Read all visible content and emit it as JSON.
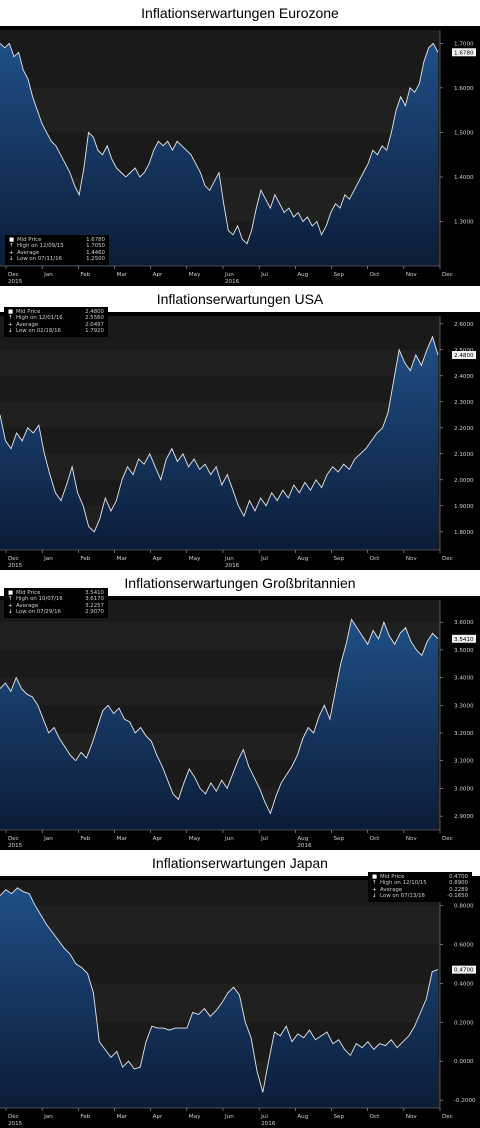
{
  "chart_data": [
    {
      "type": "area",
      "title": "Inflationserwartungen Eurozone",
      "x_ticks": [
        "Dec",
        "Jan",
        "Feb",
        "Mar",
        "Apr",
        "May",
        "Jun",
        "Jul",
        "Aug",
        "Sep",
        "Oct",
        "Nov",
        "Dec"
      ],
      "x_sub": {
        "Dec": "2015",
        "Jun": "2016"
      },
      "ylim": [
        1.2,
        1.73
      ],
      "y_ticks": [
        "1.7000",
        "1.6000",
        "1.5000",
        "1.4000",
        "1.3000"
      ],
      "last_value_label": "1.6780",
      "legend_position": "bottom-left",
      "legend": [
        {
          "sym": "■",
          "label": "Mid Price",
          "value": "1.6780"
        },
        {
          "sym": "↑",
          "label": "High on 12/09/15",
          "value": "1.7050"
        },
        {
          "sym": "+",
          "label": "Average",
          "value": "1.4460"
        },
        {
          "sym": "↓",
          "label": "Low on 07/11/16",
          "value": "1.2500"
        }
      ],
      "series": [
        {
          "values": [
            1.7,
            1.69,
            1.7,
            1.67,
            1.68,
            1.64,
            1.62,
            1.58,
            1.55,
            1.52,
            1.5,
            1.48,
            1.47,
            1.45,
            1.43,
            1.41,
            1.38,
            1.36,
            1.42,
            1.5,
            1.49,
            1.46,
            1.45,
            1.47,
            1.44,
            1.42,
            1.41,
            1.4,
            1.41,
            1.42,
            1.4,
            1.41,
            1.43,
            1.46,
            1.48,
            1.47,
            1.48,
            1.46,
            1.48,
            1.47,
            1.46,
            1.45,
            1.43,
            1.41,
            1.38,
            1.37,
            1.39,
            1.41,
            1.34,
            1.28,
            1.27,
            1.29,
            1.26,
            1.25,
            1.28,
            1.33,
            1.37,
            1.35,
            1.33,
            1.36,
            1.34,
            1.32,
            1.33,
            1.31,
            1.32,
            1.3,
            1.31,
            1.29,
            1.3,
            1.27,
            1.29,
            1.32,
            1.34,
            1.33,
            1.36,
            1.35,
            1.37,
            1.39,
            1.41,
            1.43,
            1.46,
            1.45,
            1.47,
            1.46,
            1.5,
            1.55,
            1.58,
            1.56,
            1.6,
            1.59,
            1.61,
            1.66,
            1.69,
            1.7,
            1.68
          ]
        }
      ]
    },
    {
      "type": "area",
      "title": "Inflationserwartungen USA",
      "x_ticks": [
        "Dec",
        "Jan",
        "Feb",
        "Mar",
        "Apr",
        "May",
        "Jun",
        "Jul",
        "Aug",
        "Sep",
        "Oct",
        "Nov",
        "Dec"
      ],
      "x_sub": {
        "Dec": "2015",
        "Jun": "2016"
      },
      "ylim": [
        1.73,
        2.63
      ],
      "y_ticks": [
        "2.6000",
        "2.5000",
        "2.4000",
        "2.3000",
        "2.2000",
        "2.1000",
        "2.0000",
        "1.9000",
        "1.8000"
      ],
      "last_value_label": "2.4800",
      "legend_position": "top-left",
      "legend": [
        {
          "sym": "■",
          "label": "Mid Price",
          "value": "2.4800"
        },
        {
          "sym": "↑",
          "label": "High on 12/01/16",
          "value": "2.5560"
        },
        {
          "sym": "+",
          "label": "Average",
          "value": "2.0497"
        },
        {
          "sym": "↓",
          "label": "Low on 02/18/16",
          "value": "1.7920"
        }
      ],
      "series": [
        {
          "values": [
            2.25,
            2.15,
            2.12,
            2.18,
            2.15,
            2.2,
            2.18,
            2.21,
            2.1,
            2.02,
            1.95,
            1.92,
            1.98,
            2.05,
            1.95,
            1.9,
            1.82,
            1.8,
            1.85,
            1.93,
            1.88,
            1.92,
            2.0,
            2.05,
            2.02,
            2.08,
            2.06,
            2.1,
            2.05,
            2.0,
            2.08,
            2.12,
            2.07,
            2.1,
            2.05,
            2.08,
            2.04,
            2.06,
            2.02,
            2.05,
            1.98,
            2.02,
            1.96,
            1.9,
            1.86,
            1.92,
            1.88,
            1.93,
            1.9,
            1.95,
            1.92,
            1.96,
            1.93,
            1.98,
            1.95,
            1.99,
            1.96,
            2.0,
            1.97,
            2.02,
            2.05,
            2.03,
            2.06,
            2.04,
            2.08,
            2.1,
            2.12,
            2.15,
            2.18,
            2.2,
            2.26,
            2.38,
            2.5,
            2.45,
            2.42,
            2.48,
            2.44,
            2.5,
            2.55,
            2.48
          ]
        }
      ]
    },
    {
      "type": "area",
      "title": "Inflationserwartungen Großbritannien",
      "x_ticks": [
        "Dec",
        "Jan",
        "Feb",
        "Mar",
        "Apr",
        "May",
        "Jun",
        "Jul",
        "Aug",
        "Sep",
        "Oct",
        "Nov",
        "Dec"
      ],
      "x_sub": {
        "Dec": "2015",
        "Aug": "2016"
      },
      "ylim": [
        2.85,
        3.68
      ],
      "y_ticks": [
        "3.6000",
        "3.5000",
        "3.4000",
        "3.3000",
        "3.2000",
        "3.1000",
        "3.0000",
        "2.9000"
      ],
      "last_value_label": "3.5410",
      "legend_position": "top-left",
      "legend": [
        {
          "sym": "■",
          "label": "Mid Price",
          "value": "3.5410"
        },
        {
          "sym": "↑",
          "label": "High on 10/07/16",
          "value": "3.6170"
        },
        {
          "sym": "+",
          "label": "Average",
          "value": "3.2257"
        },
        {
          "sym": "↓",
          "label": "Low on 07/29/16",
          "value": "2.9070"
        }
      ],
      "series": [
        {
          "values": [
            3.36,
            3.38,
            3.35,
            3.4,
            3.36,
            3.34,
            3.33,
            3.3,
            3.25,
            3.2,
            3.22,
            3.18,
            3.15,
            3.12,
            3.1,
            3.13,
            3.11,
            3.16,
            3.22,
            3.28,
            3.3,
            3.27,
            3.29,
            3.25,
            3.24,
            3.2,
            3.22,
            3.19,
            3.17,
            3.12,
            3.08,
            3.03,
            2.98,
            2.96,
            3.02,
            3.07,
            3.04,
            3.0,
            2.98,
            3.02,
            2.99,
            3.03,
            3.0,
            3.05,
            3.1,
            3.14,
            3.08,
            3.04,
            3.0,
            2.95,
            2.91,
            2.97,
            3.02,
            3.05,
            3.08,
            3.12,
            3.18,
            3.22,
            3.2,
            3.26,
            3.3,
            3.25,
            3.35,
            3.45,
            3.52,
            3.61,
            3.58,
            3.55,
            3.52,
            3.57,
            3.54,
            3.6,
            3.55,
            3.52,
            3.56,
            3.58,
            3.53,
            3.5,
            3.48,
            3.53,
            3.56,
            3.54
          ]
        }
      ]
    },
    {
      "type": "area",
      "title": "Inflationserwartungen Japan",
      "x_ticks": [
        "Dec",
        "Jan",
        "Feb",
        "Mar",
        "Apr",
        "May",
        "Jun",
        "Jul",
        "Aug",
        "Sep",
        "Oct",
        "Nov",
        "Dec"
      ],
      "x_sub": {
        "Dec": "2015",
        "Jul": "2016"
      },
      "ylim": [
        -0.24,
        0.93
      ],
      "y_ticks": [
        "0.8000",
        "0.6000",
        "0.4000",
        "0.2000",
        "0.0000",
        "-0.2000"
      ],
      "last_value_label": "0.4700",
      "legend_position": "top-right",
      "legend": [
        {
          "sym": "■",
          "label": "Mid Price",
          "value": "0.4700"
        },
        {
          "sym": "↑",
          "label": "High on 12/10/15",
          "value": "0.8900"
        },
        {
          "sym": "+",
          "label": "Average",
          "value": "0.2289"
        },
        {
          "sym": "↓",
          "label": "Low on 07/13/16",
          "value": "-0.1650"
        }
      ],
      "series": [
        {
          "values": [
            0.85,
            0.88,
            0.86,
            0.89,
            0.87,
            0.86,
            0.8,
            0.75,
            0.7,
            0.66,
            0.62,
            0.58,
            0.55,
            0.5,
            0.48,
            0.45,
            0.35,
            0.1,
            0.06,
            0.02,
            0.05,
            -0.03,
            0.0,
            -0.04,
            -0.03,
            0.1,
            0.18,
            0.17,
            0.17,
            0.16,
            0.17,
            0.17,
            0.17,
            0.25,
            0.24,
            0.27,
            0.23,
            0.26,
            0.3,
            0.35,
            0.38,
            0.34,
            0.2,
            0.12,
            -0.05,
            -0.16,
            0.0,
            0.15,
            0.13,
            0.18,
            0.1,
            0.14,
            0.12,
            0.16,
            0.11,
            0.13,
            0.15,
            0.09,
            0.11,
            0.06,
            0.03,
            0.09,
            0.07,
            0.1,
            0.06,
            0.09,
            0.08,
            0.11,
            0.07,
            0.1,
            0.13,
            0.18,
            0.25,
            0.32,
            0.46,
            0.47
          ]
        }
      ]
    }
  ]
}
